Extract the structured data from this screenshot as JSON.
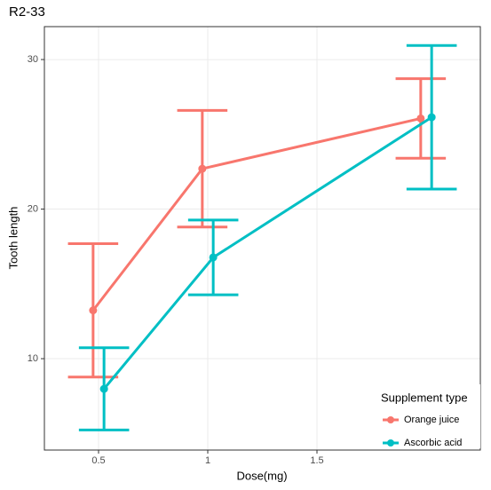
{
  "chart_data": {
    "type": "errorbar-line",
    "title": "R2-33",
    "x_label": "Dose(mg)",
    "y_label": "Tooth length",
    "x": [
      0.5,
      1.0,
      2.0
    ],
    "series": [
      {
        "name": "Orange juice",
        "color": "#f8766d",
        "values": [
          13.23,
          22.7,
          26.06
        ],
        "errors": [
          4.46,
          3.9,
          2.66
        ]
      },
      {
        "name": "Ascorbic acid",
        "color": "#00bfc4",
        "values": [
          7.98,
          16.77,
          26.14
        ],
        "errors": [
          2.75,
          2.5,
          4.8
        ]
      }
    ],
    "xlim": [
      0.252,
      2.248
    ],
    "xticks": [
      0.5,
      1.0,
      1.5
    ],
    "ylim": [
      3.89,
      32.2
    ],
    "yticks": [
      10,
      20,
      30
    ],
    "grid": true,
    "legend_title": "Supplement type",
    "legend_position": "bottom-right"
  }
}
